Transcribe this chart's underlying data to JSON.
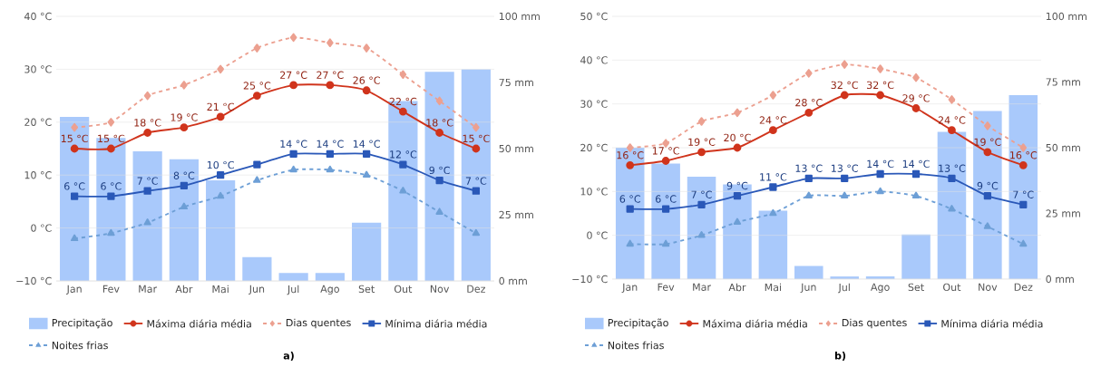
{
  "chart_data": [
    {
      "type": "line",
      "title": "a)",
      "categories": [
        "Jan",
        "Fev",
        "Mar",
        "Abr",
        "Mai",
        "Jun",
        "Jul",
        "Ago",
        "Set",
        "Out",
        "Nov",
        "Dez"
      ],
      "ylim": [
        -10,
        40
      ],
      "yticks": [
        {
          "value": -10,
          "label": "−10 °C"
        },
        {
          "value": 0,
          "label": "0 °C"
        },
        {
          "value": 10,
          "label": "10 °C"
        },
        {
          "value": 20,
          "label": "20 °C"
        },
        {
          "value": 30,
          "label": "30 °C"
        },
        {
          "value": 40,
          "label": "40 °C"
        }
      ],
      "y2lim": [
        0,
        100
      ],
      "y2ticks": [
        {
          "value": 0,
          "label": "0 mm"
        },
        {
          "value": 25,
          "label": "25 mm"
        },
        {
          "value": 50,
          "label": "50 mm"
        },
        {
          "value": 75,
          "label": "75 mm"
        },
        {
          "value": 100,
          "label": "100 mm"
        }
      ],
      "grid": "y",
      "legend": "bottom",
      "series": [
        {
          "name": "Precipitação",
          "type": "bar",
          "axis": "y2",
          "color": "#a9c9fb",
          "values": [
            62,
            54,
            49,
            46,
            38,
            9,
            3,
            3,
            22,
            68,
            79,
            80
          ]
        },
        {
          "name": "Máxima diária média",
          "color": "#d0341c",
          "marker": "circle",
          "line_style": "solid",
          "values": [
            15,
            15,
            18,
            19,
            21,
            25,
            27,
            27,
            26,
            22,
            18,
            15
          ],
          "value_labels": [
            "15 °C",
            "15 °C",
            "18 °C",
            "19 °C",
            "21 °C",
            "25 °C",
            "27 °C",
            "27 °C",
            "26 °C",
            "22 °C",
            "18 °C",
            "15 °C"
          ]
        },
        {
          "name": "Dias quentes",
          "color": "#eca090",
          "marker": "diamond",
          "line_style": "dashed",
          "values": [
            19,
            20,
            25,
            27,
            30,
            34,
            36,
            35,
            34,
            29,
            24,
            19
          ]
        },
        {
          "name": "Mínima diária média",
          "color": "#2a58b8",
          "marker": "square",
          "line_style": "solid",
          "values": [
            6,
            6,
            7,
            8,
            10,
            12,
            14,
            14,
            14,
            12,
            9,
            7
          ],
          "value_labels": [
            "6 °C",
            "6 °C",
            "7 °C",
            "8 °C",
            "10 °C",
            null,
            "14 °C",
            "14 °C",
            "14 °C",
            "12 °C",
            "9 °C",
            "7 °C"
          ]
        },
        {
          "name": "Noites frias",
          "color": "#6d9fd6",
          "marker": "triangle",
          "line_style": "dashed",
          "values": [
            -2,
            -1,
            1,
            4,
            6,
            9,
            11,
            11,
            10,
            7,
            3,
            -1
          ]
        }
      ]
    },
    {
      "type": "line",
      "title": "b)",
      "categories": [
        "Jan",
        "Fev",
        "Mar",
        "Abr",
        "Mai",
        "Jun",
        "Jul",
        "Ago",
        "Set",
        "Out",
        "Nov",
        "Dez"
      ],
      "ylim": [
        -10,
        50
      ],
      "yticks": [
        {
          "value": -10,
          "label": "−10 °C"
        },
        {
          "value": 0,
          "label": "0 °C"
        },
        {
          "value": 10,
          "label": "10 °C"
        },
        {
          "value": 20,
          "label": "20 °C"
        },
        {
          "value": 30,
          "label": "30 °C"
        },
        {
          "value": 40,
          "label": "40 °C"
        },
        {
          "value": 50,
          "label": "50 °C"
        }
      ],
      "y2lim": [
        0,
        100
      ],
      "y2ticks": [
        {
          "value": 0,
          "label": "0 mm"
        },
        {
          "value": 25,
          "label": "25 mm"
        },
        {
          "value": 50,
          "label": "50 mm"
        },
        {
          "value": 75,
          "label": "75 mm"
        },
        {
          "value": 100,
          "label": "100 mm"
        }
      ],
      "grid": "y",
      "legend": "bottom",
      "series": [
        {
          "name": "Precipitação",
          "type": "bar",
          "axis": "y2",
          "color": "#a9c9fb",
          "values": [
            50,
            44,
            39,
            36,
            26,
            5,
            1,
            1,
            17,
            56,
            64,
            70
          ]
        },
        {
          "name": "Máxima diária média",
          "color": "#d0341c",
          "marker": "circle",
          "line_style": "solid",
          "values": [
            16,
            17,
            19,
            20,
            24,
            28,
            32,
            32,
            29,
            24,
            19,
            16
          ],
          "value_labels": [
            "16 °C",
            "17 °C",
            "19 °C",
            "20 °C",
            "24 °C",
            "28 °C",
            "32 °C",
            "32 °C",
            "29 °C",
            "24 °C",
            "19 °C",
            "16 °C"
          ]
        },
        {
          "name": "Dias quentes",
          "color": "#eca090",
          "marker": "diamond",
          "line_style": "dashed",
          "values": [
            20,
            21,
            26,
            28,
            32,
            37,
            39,
            38,
            36,
            31,
            25,
            20
          ]
        },
        {
          "name": "Mínima diária média",
          "color": "#2a58b8",
          "marker": "square",
          "line_style": "solid",
          "values": [
            6,
            6,
            7,
            9,
            11,
            13,
            13,
            14,
            14,
            13,
            9,
            7
          ],
          "value_labels": [
            "6 °C",
            "6 °C",
            "7 °C",
            "9 °C",
            "11 °C",
            "13 °C",
            "13 °C",
            "14 °C",
            "14 °C",
            "13 °C",
            "9 °C",
            "7 °C"
          ]
        },
        {
          "name": "Noites frias",
          "color": "#6d9fd6",
          "marker": "triangle",
          "line_style": "dashed",
          "values": [
            -2,
            -2,
            0,
            3,
            5,
            9,
            9,
            10,
            9,
            6,
            2,
            -2
          ]
        }
      ]
    }
  ]
}
